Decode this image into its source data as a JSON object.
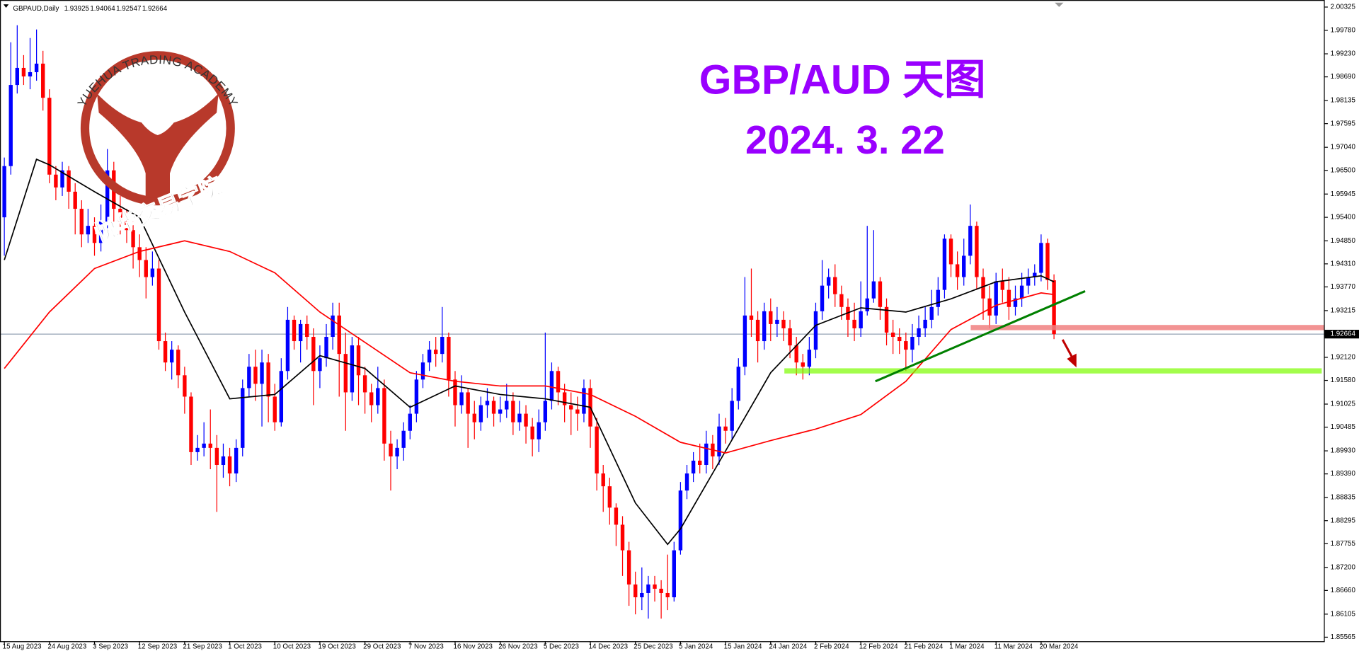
{
  "chart_data": {
    "type": "candlestick",
    "header": "GBPAUD,Daily",
    "title": "GBP/AUD 天图",
    "subtitle": "2024. 3. 22",
    "logo_text": "YUEHUA TRADING ACADEMY",
    "logo_text_cn": "悦华交易学院",
    "up_color": "#0000ff",
    "down_color": "#ff0000",
    "categories": [
      "15 Aug 2023",
      null,
      null,
      null,
      null,
      null,
      null,
      "24 Aug 2023",
      null,
      null,
      null,
      null,
      null,
      null,
      "3 Sep 2023",
      null,
      null,
      null,
      null,
      null,
      null,
      "12 Sep 2023",
      null,
      null,
      null,
      null,
      null,
      null,
      "21 Sep 2023",
      null,
      null,
      null,
      null,
      null,
      null,
      "1 Oct 2023",
      null,
      null,
      null,
      null,
      null,
      null,
      "10 Oct 2023",
      null,
      null,
      null,
      null,
      null,
      null,
      "19 Oct 2023",
      null,
      null,
      null,
      null,
      null,
      null,
      "29 Oct 2023",
      null,
      null,
      null,
      null,
      null,
      null,
      "7 Nov 2023",
      null,
      null,
      null,
      null,
      null,
      null,
      "16 Nov 2023",
      null,
      null,
      null,
      null,
      null,
      null,
      "26 Nov 2023",
      null,
      null,
      null,
      null,
      null,
      null,
      "5 Dec 2023",
      null,
      null,
      null,
      null,
      null,
      null,
      "14 Dec 2023",
      null,
      null,
      null,
      null,
      null,
      null,
      "25 Dec 2023",
      null,
      null,
      null,
      null,
      null,
      null,
      "5 Jan 2024",
      null,
      null,
      null,
      null,
      null,
      null,
      "15 Jan 2024",
      null,
      null,
      null,
      null,
      null,
      null,
      "24 Jan 2024",
      null,
      null,
      null,
      null,
      null,
      null,
      "2 Feb 2024",
      null,
      null,
      null,
      null,
      null,
      null,
      "12 Feb 2024",
      null,
      null,
      null,
      null,
      null,
      null,
      "21 Feb 2024",
      null,
      null,
      null,
      null,
      null,
      null,
      "1 Mar 2024",
      null,
      null,
      null,
      null,
      null,
      null,
      "11 Mar 2024",
      null,
      null,
      null,
      null,
      null,
      null,
      "20 Mar 2024",
      null,
      null
    ],
    "open": [
      1.954,
      1.966,
      1.985,
      1.989,
      1.987,
      1.988,
      1.99,
      1.982,
      1.964,
      1.961,
      1.965,
      1.96,
      1.956,
      1.95,
      1.952,
      1.948,
      1.953,
      1.965,
      1.956,
      1.953,
      1.951,
      1.947,
      1.944,
      1.94,
      1.942,
      1.925,
      1.92,
      1.923,
      1.917,
      1.912,
      1.899,
      1.9,
      1.901,
      1.9,
      1.896,
      1.898,
      1.894,
      1.9,
      1.914,
      1.919,
      1.915,
      1.92,
      1.912,
      1.906,
      1.918,
      1.93,
      1.925,
      1.929,
      1.926,
      1.918,
      1.921,
      1.926,
      1.931,
      1.922,
      1.913,
      1.924,
      1.917,
      1.913,
      1.91,
      1.914,
      1.901,
      1.898,
      1.9,
      1.904,
      1.908,
      1.916,
      1.92,
      1.923,
      1.922,
      1.926,
      1.916,
      1.91,
      1.913,
      1.908,
      1.906,
      1.91,
      1.911,
      1.908,
      1.909,
      1.911,
      1.906,
      1.908,
      1.905,
      1.902,
      1.906,
      1.911,
      1.918,
      1.913,
      1.91,
      1.909,
      1.908,
      1.914,
      1.905,
      1.894,
      1.891,
      1.886,
      1.882,
      1.876,
      1.868,
      1.865,
      1.866,
      1.868,
      1.867,
      1.866,
      1.865,
      1.876,
      1.89,
      1.894,
      1.897,
      1.896,
      1.901,
      1.898,
      1.905,
      1.904,
      1.911,
      1.919,
      1.931,
      1.93,
      1.925,
      1.932,
      1.929,
      1.93,
      1.928,
      1.924,
      1.92,
      1.919,
      1.923,
      1.932,
      1.938,
      1.94,
      1.936,
      1.933,
      1.93,
      1.928,
      1.932,
      1.935,
      1.939,
      1.933,
      1.927,
      1.926,
      1.925,
      1.923,
      1.926,
      1.928,
      1.93,
      1.933,
      1.937,
      1.949,
      1.943,
      1.94,
      1.945,
      1.952,
      1.94,
      1.935,
      1.931,
      1.939,
      1.937,
      1.933,
      1.935,
      1.938,
      1.94,
      1.941,
      1.948,
      1.93925
    ],
    "high": [
      1.968,
      1.995,
      1.999,
      1.992,
      1.996,
      1.998,
      1.993,
      1.984,
      1.966,
      1.967,
      1.966,
      1.962,
      1.958,
      1.956,
      1.954,
      1.957,
      1.97,
      1.967,
      1.959,
      1.956,
      1.953,
      1.95,
      1.947,
      1.946,
      1.944,
      1.927,
      1.925,
      1.924,
      1.919,
      1.913,
      1.903,
      1.906,
      1.909,
      1.903,
      1.901,
      1.9,
      1.902,
      1.916,
      1.922,
      1.923,
      1.923,
      1.922,
      1.915,
      1.921,
      1.933,
      1.931,
      1.93,
      1.931,
      1.928,
      1.924,
      1.929,
      1.934,
      1.934,
      1.927,
      1.926,
      1.926,
      1.919,
      1.915,
      1.919,
      1.916,
      1.904,
      1.902,
      1.906,
      1.91,
      1.918,
      1.922,
      1.925,
      1.926,
      1.933,
      1.927,
      1.918,
      1.917,
      1.914,
      1.911,
      1.912,
      1.914,
      1.912,
      1.912,
      1.915,
      1.913,
      1.911,
      1.91,
      1.907,
      1.909,
      1.927,
      1.92,
      1.919,
      1.915,
      1.913,
      1.912,
      1.916,
      1.916,
      1.907,
      1.896,
      1.893,
      1.887,
      1.884,
      1.878,
      1.871,
      1.872,
      1.87,
      1.87,
      1.869,
      1.875,
      1.878,
      1.892,
      1.896,
      1.899,
      1.901,
      1.904,
      1.903,
      1.908,
      1.907,
      1.914,
      1.921,
      1.94,
      1.942,
      1.932,
      1.934,
      1.935,
      1.933,
      1.932,
      1.93,
      1.926,
      1.922,
      1.926,
      1.934,
      1.944,
      1.942,
      1.943,
      1.938,
      1.935,
      1.934,
      1.939,
      1.952,
      1.951,
      1.94,
      1.935,
      1.93,
      1.928,
      1.927,
      1.929,
      1.931,
      1.933,
      1.937,
      1.94,
      1.95,
      1.95,
      1.946,
      1.949,
      1.957,
      1.953,
      1.942,
      1.938,
      1.941,
      1.942,
      1.94,
      1.938,
      1.941,
      1.942,
      1.943,
      1.95,
      1.949,
      1.94064
    ],
    "low": [
      1.945,
      1.964,
      1.983,
      1.985,
      1.984,
      1.986,
      1.979,
      1.962,
      1.958,
      1.959,
      1.956,
      1.95,
      1.947,
      1.948,
      1.945,
      1.946,
      1.951,
      1.953,
      1.95,
      1.948,
      1.942,
      1.94,
      1.935,
      1.938,
      1.923,
      1.918,
      1.916,
      1.914,
      1.908,
      1.896,
      1.897,
      1.898,
      1.895,
      1.885,
      1.893,
      1.891,
      1.892,
      1.898,
      1.912,
      1.911,
      1.905,
      1.906,
      1.904,
      1.905,
      1.916,
      1.923,
      1.92,
      1.923,
      1.91,
      1.914,
      1.919,
      1.923,
      1.912,
      1.904,
      1.911,
      1.91,
      1.908,
      1.906,
      1.908,
      1.897,
      1.89,
      1.895,
      1.897,
      1.902,
      1.906,
      1.914,
      1.918,
      1.919,
      1.92,
      1.912,
      1.905,
      1.908,
      1.9,
      1.902,
      1.904,
      1.907,
      1.905,
      1.906,
      1.907,
      1.903,
      1.904,
      1.901,
      1.898,
      1.899,
      1.904,
      1.909,
      1.91,
      1.906,
      1.903,
      1.904,
      1.906,
      1.9,
      1.89,
      1.885,
      1.882,
      1.877,
      1.87,
      1.863,
      1.861,
      1.862,
      1.86,
      1.864,
      1.86,
      1.862,
      1.864,
      1.875,
      1.888,
      1.892,
      1.894,
      1.894,
      1.895,
      1.896,
      1.901,
      1.902,
      1.909,
      1.917,
      1.926,
      1.92,
      1.923,
      1.925,
      1.926,
      1.925,
      1.921,
      1.917,
      1.916,
      1.917,
      1.921,
      1.93,
      1.935,
      1.933,
      1.93,
      1.926,
      1.925,
      1.926,
      1.931,
      1.934,
      1.93,
      1.924,
      1.922,
      1.922,
      1.918,
      1.92,
      1.924,
      1.926,
      1.928,
      1.931,
      1.935,
      1.94,
      1.937,
      1.938,
      1.943,
      1.937,
      1.93,
      1.928,
      1.929,
      1.934,
      1.93,
      1.931,
      1.933,
      1.936,
      1.938,
      1.939,
      1.937,
      1.92547
    ],
    "close": [
      1.966,
      1.985,
      1.989,
      1.987,
      1.988,
      1.99,
      1.982,
      1.964,
      1.961,
      1.965,
      1.96,
      1.956,
      1.95,
      1.952,
      1.948,
      1.953,
      1.965,
      1.956,
      1.953,
      1.951,
      1.947,
      1.944,
      1.94,
      1.942,
      1.925,
      1.92,
      1.923,
      1.917,
      1.912,
      1.899,
      1.9,
      1.901,
      1.9,
      1.896,
      1.898,
      1.894,
      1.9,
      1.914,
      1.919,
      1.915,
      1.92,
      1.912,
      1.906,
      1.918,
      1.93,
      1.925,
      1.929,
      1.926,
      1.918,
      1.921,
      1.926,
      1.931,
      1.922,
      1.913,
      1.924,
      1.917,
      1.913,
      1.91,
      1.914,
      1.901,
      1.898,
      1.9,
      1.904,
      1.908,
      1.916,
      1.92,
      1.923,
      1.922,
      1.926,
      1.916,
      1.91,
      1.913,
      1.908,
      1.906,
      1.91,
      1.911,
      1.908,
      1.909,
      1.911,
      1.906,
      1.908,
      1.905,
      1.902,
      1.906,
      1.911,
      1.918,
      1.913,
      1.91,
      1.909,
      1.908,
      1.914,
      1.905,
      1.894,
      1.891,
      1.886,
      1.882,
      1.876,
      1.868,
      1.865,
      1.866,
      1.868,
      1.867,
      1.866,
      1.865,
      1.876,
      1.89,
      1.894,
      1.897,
      1.896,
      1.901,
      1.898,
      1.905,
      1.904,
      1.911,
      1.919,
      1.931,
      1.93,
      1.925,
      1.932,
      1.929,
      1.93,
      1.928,
      1.924,
      1.92,
      1.919,
      1.923,
      1.932,
      1.938,
      1.94,
      1.936,
      1.933,
      1.93,
      1.928,
      1.932,
      1.935,
      1.939,
      1.933,
      1.927,
      1.926,
      1.925,
      1.923,
      1.926,
      1.928,
      1.93,
      1.933,
      1.937,
      1.949,
      1.943,
      1.94,
      1.945,
      1.952,
      1.94,
      1.935,
      1.931,
      1.939,
      1.937,
      1.933,
      1.935,
      1.938,
      1.94,
      1.941,
      1.948,
      1.9393,
      1.92664
    ],
    "indicators": [
      {
        "color": "#000000",
        "x": [
          0,
          5,
          7,
          14,
          21,
          28,
          35,
          42,
          49,
          56,
          63,
          70,
          77,
          84,
          91,
          98,
          103,
          105,
          112,
          119,
          126,
          133,
          140,
          147,
          154,
          161,
          163
        ],
        "values": [
          1.944,
          1.9676,
          1.9663,
          1.96,
          1.954,
          1.9318,
          1.9115,
          1.9125,
          1.9216,
          1.9186,
          1.9095,
          1.9145,
          1.9125,
          1.9115,
          1.9095,
          1.8871,
          1.8774,
          1.881,
          1.8993,
          1.9176,
          1.9287,
          1.9328,
          1.9318,
          1.9349,
          1.9389,
          1.9403,
          1.9389
        ]
      },
      {
        "color": "#ff0000",
        "x": [
          0,
          7,
          14,
          21,
          28,
          35,
          42,
          49,
          56,
          63,
          70,
          77,
          84,
          91,
          98,
          105,
          112,
          119,
          126,
          133,
          140,
          147,
          154,
          161,
          163
        ],
        "values": [
          1.9186,
          1.9318,
          1.942,
          1.946,
          1.9485,
          1.946,
          1.941,
          1.9318,
          1.9247,
          1.9176,
          1.9156,
          1.9145,
          1.9145,
          1.9125,
          1.9074,
          1.9013,
          1.8988,
          1.9017,
          1.9044,
          1.9078,
          1.9156,
          1.9277,
          1.9334,
          1.9363,
          1.9359
        ]
      }
    ],
    "current_price": 1.92664,
    "ylim": [
      1.8547,
      2.0049
    ],
    "yticks": [
      2.00325,
      {
        "value": 1.9978,
        "label": "1.99780"
      },
      {
        "value": 1.9923,
        "label": "1.99230"
      },
      {
        "value": 1.9869,
        "label": "1.98690"
      },
      1.98135,
      1.97595,
      {
        "value": 1.9704,
        "label": "1.97040"
      },
      {
        "value": 1.965,
        "label": "1.96500"
      },
      1.95945,
      {
        "value": 1.954,
        "label": "1.95400"
      },
      {
        "value": 1.9485,
        "label": "1.94850"
      },
      {
        "value": 1.9431,
        "label": "1.94310"
      },
      {
        "value": 1.9377,
        "label": "1.93770"
      },
      1.93215,
      {
        "value": 1.9212,
        "label": "1.92120"
      },
      {
        "value": 1.9158,
        "label": "1.91580"
      },
      1.91025,
      1.90485,
      {
        "value": 1.8993,
        "label": "1.89930"
      },
      {
        "value": 1.8939,
        "label": "1.89390"
      },
      1.88835,
      1.88295,
      1.87755,
      {
        "value": 1.872,
        "label": "1.87200"
      },
      {
        "value": 1.8666,
        "label": "1.86660"
      },
      1.86105,
      1.85565
    ]
  }
}
